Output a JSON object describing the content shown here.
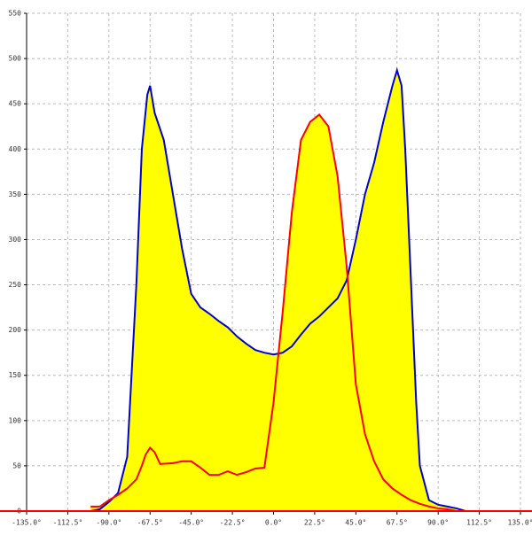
{
  "chart_data": {
    "type": "line",
    "fill_color": "#ffff00",
    "grid": true,
    "xlim": [
      -135,
      135
    ],
    "ylim": [
      0,
      550
    ],
    "xticks": [
      {
        "value": -135,
        "label": "-135.0°"
      },
      {
        "value": -112.5,
        "label": "-112.5°"
      },
      {
        "value": -90,
        "label": "-90.0°"
      },
      {
        "value": -67.5,
        "label": "-67.5°"
      },
      {
        "value": -45,
        "label": "-45.0°"
      },
      {
        "value": -22.5,
        "label": "-22.5°"
      },
      {
        "value": 0,
        "label": "0.0°"
      },
      {
        "value": 22.5,
        "label": "22.5°"
      },
      {
        "value": 45,
        "label": "45.0°"
      },
      {
        "value": 67.5,
        "label": "67.5°"
      },
      {
        "value": 90,
        "label": "90.0°"
      },
      {
        "value": 112.5,
        "label": "112.5°"
      },
      {
        "value": 135,
        "label": "135.0°"
      }
    ],
    "yticks": [
      0,
      50,
      100,
      150,
      200,
      250,
      300,
      350,
      400,
      450,
      500,
      550
    ],
    "series": [
      {
        "color": "#0000cc",
        "x": [
          -100,
          -95,
          -90,
          -85,
          -80,
          -75,
          -72,
          -69,
          -67.5,
          -65,
          -60,
          -55,
          -50,
          -45,
          -40,
          -35,
          -30,
          -25,
          -20,
          -15,
          -10,
          -5,
          0,
          5,
          10,
          15,
          20,
          25,
          30,
          35,
          40,
          45,
          50,
          55,
          60,
          65,
          67.5,
          70,
          72,
          75,
          78,
          80,
          85,
          90,
          95,
          100,
          105
        ],
        "values": [
          0,
          2,
          10,
          20,
          60,
          250,
          400,
          460,
          470,
          440,
          410,
          350,
          290,
          240,
          225,
          218,
          210,
          203,
          193,
          185,
          178,
          175,
          173,
          175,
          182,
          195,
          207,
          215,
          225,
          235,
          255,
          300,
          350,
          385,
          430,
          470,
          487,
          470,
          400,
          260,
          120,
          50,
          12,
          7,
          5,
          3,
          0
        ]
      },
      {
        "color": "#ff0000",
        "x": [
          -100,
          -95,
          -90,
          -85,
          -80,
          -75,
          -72,
          -70,
          -67.5,
          -65,
          -62,
          -55,
          -50,
          -45,
          -40,
          -35,
          -30,
          -25,
          -20,
          -15,
          -10,
          -5,
          0,
          5,
          10,
          15,
          20,
          25,
          30,
          35,
          40,
          45,
          50,
          55,
          60,
          65,
          70,
          75,
          80,
          85,
          90,
          95,
          100
        ],
        "values": [
          5,
          5,
          12,
          18,
          25,
          35,
          50,
          62,
          70,
          65,
          52,
          53,
          55,
          55,
          48,
          40,
          40,
          44,
          40,
          43,
          47,
          48,
          120,
          220,
          330,
          410,
          430,
          438,
          425,
          370,
          270,
          140,
          85,
          55,
          35,
          25,
          18,
          12,
          8,
          5,
          3,
          2,
          0
        ]
      }
    ]
  }
}
